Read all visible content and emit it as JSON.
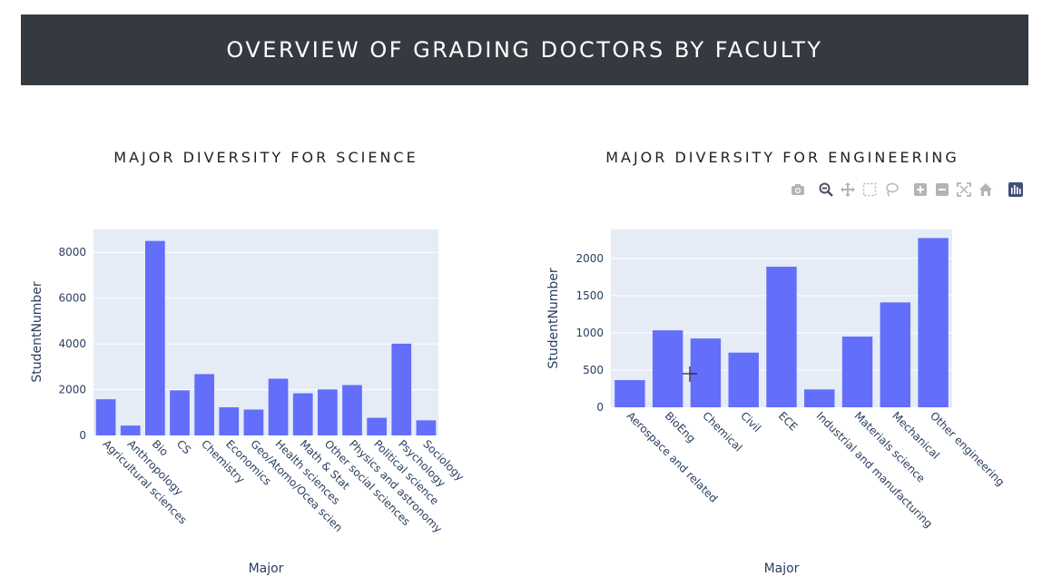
{
  "header": {
    "title": "OVERVIEW OF GRADING DOCTORS BY FACULTY"
  },
  "colors": {
    "header_bg": "#343a40",
    "bar": "#636efa",
    "plot_bg": "#e5ecf6",
    "text": "#2a3f5f"
  },
  "modebar": {
    "icons": [
      "camera-icon",
      "zoom-icon",
      "pan-icon",
      "box-select-icon",
      "lasso-icon",
      "zoom-in-icon",
      "zoom-out-icon",
      "autoscale-icon",
      "reset-axes-icon",
      "plotly-logo-icon"
    ]
  },
  "chart_data": [
    {
      "type": "bar",
      "title": "MAJOR DIVERSITY FOR SCIENCE",
      "xlabel": "Major",
      "ylabel": "StudentNumber",
      "categories": [
        "Agricultural sciences",
        "Anthropology",
        "Bio",
        "CS",
        "Chemistry",
        "Economics",
        "Geo/Atomo/Ocea scien",
        "Health sciences",
        "Math & Stat",
        "Other social sciences",
        "Physics and astronomy",
        "Political science",
        "Psychology",
        "Sociology"
      ],
      "values": [
        1580,
        430,
        8500,
        1970,
        2680,
        1230,
        1130,
        2480,
        1840,
        2010,
        2200,
        770,
        4010,
        660
      ],
      "ylim": [
        0,
        9000
      ],
      "yticks": [
        0,
        2000,
        4000,
        6000,
        8000
      ],
      "ytick_labels": [
        "0",
        "2000",
        "4000",
        "6000",
        "8000"
      ]
    },
    {
      "type": "bar",
      "title": "MAJOR DIVERSITY FOR ENGINEERING",
      "xlabel": "Major",
      "ylabel": "StudentNumber",
      "categories": [
        "Aerospace and related",
        "BioEng",
        "Chemical",
        "Civil",
        "ECE",
        "Industrial and manufacturing",
        "Materials science",
        "Mechanical",
        "Other engineering"
      ],
      "values": [
        365,
        1035,
        925,
        735,
        1890,
        240,
        950,
        1410,
        2275
      ],
      "ylim": [
        0,
        2390
      ],
      "yticks": [
        0,
        500,
        1000,
        1500,
        2000
      ],
      "ytick_labels": [
        "0",
        "500",
        "1000",
        "1500",
        "2000"
      ]
    }
  ]
}
